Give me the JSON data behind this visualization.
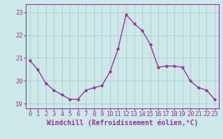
{
  "x": [
    0,
    1,
    2,
    3,
    4,
    5,
    6,
    7,
    8,
    9,
    10,
    11,
    12,
    13,
    14,
    15,
    16,
    17,
    18,
    19,
    20,
    21,
    22,
    23
  ],
  "y": [
    20.9,
    20.5,
    19.9,
    19.6,
    19.4,
    19.2,
    19.2,
    19.6,
    19.7,
    19.8,
    20.4,
    21.4,
    22.9,
    22.5,
    22.2,
    21.6,
    20.6,
    20.65,
    20.65,
    20.6,
    20.0,
    19.7,
    19.6,
    19.2
  ],
  "line_color": "#993399",
  "marker_color": "#993399",
  "bg_color": "#cce8e8",
  "grid_color": "#aacccc",
  "xlabel": "Windchill (Refroidissement éolien,°C)",
  "ylim": [
    18.8,
    23.35
  ],
  "xlim": [
    -0.5,
    23.5
  ],
  "yticks": [
    19,
    20,
    21,
    22,
    23
  ],
  "xticks": [
    0,
    1,
    2,
    3,
    4,
    5,
    6,
    7,
    8,
    9,
    10,
    11,
    12,
    13,
    14,
    15,
    16,
    17,
    18,
    19,
    20,
    21,
    22,
    23
  ],
  "xtick_labels": [
    "0",
    "1",
    "2",
    "3",
    "4",
    "5",
    "6",
    "7",
    "8",
    "9",
    "10",
    "11",
    "12",
    "13",
    "14",
    "15",
    "16",
    "17",
    "18",
    "19",
    "20",
    "21",
    "22",
    "23"
  ],
  "line_width": 1.0,
  "marker_size": 2.5,
  "font_color": "#993399",
  "label_fontsize": 7,
  "tick_fontsize": 6.5
}
